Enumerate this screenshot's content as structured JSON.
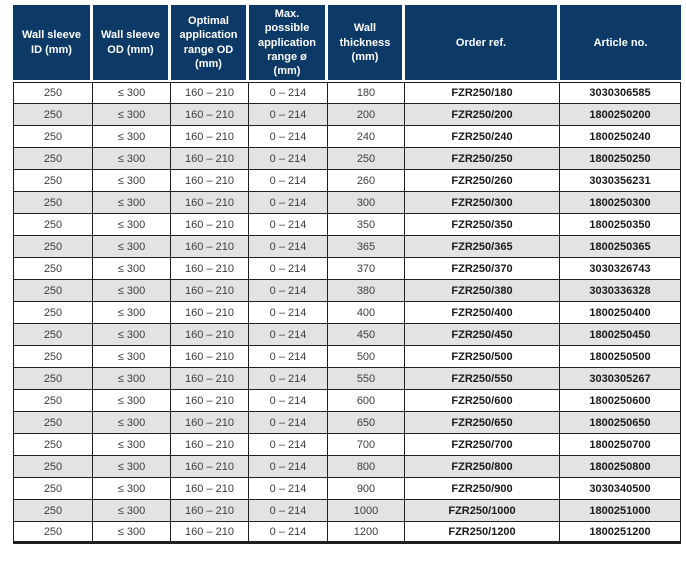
{
  "colors": {
    "header-bg": "#0d3966",
    "header-text": "#ffffff",
    "row-bg": "#ffffff",
    "row-alt-bg": "#e3e3e3",
    "grid-line": "#1f1f1f",
    "cell-text": "#3d3d3d",
    "strong-text": "#1a1a1a"
  },
  "table": {
    "columns": [
      "Wall sleeve ID (mm)",
      "Wall sleeve OD (mm)",
      "Optimal application range OD (mm)",
      "Max. possible application range ø (mm)",
      "Wall thickness (mm)",
      "Order ref.",
      "Article no."
    ],
    "rows": [
      [
        "250",
        "≤ 300",
        "160 – 210",
        "0 – 214",
        "180",
        "FZR250/180",
        "3030306585"
      ],
      [
        "250",
        "≤ 300",
        "160 – 210",
        "0 – 214",
        "200",
        "FZR250/200",
        "1800250200"
      ],
      [
        "250",
        "≤ 300",
        "160 – 210",
        "0 – 214",
        "240",
        "FZR250/240",
        "1800250240"
      ],
      [
        "250",
        "≤ 300",
        "160 – 210",
        "0 – 214",
        "250",
        "FZR250/250",
        "1800250250"
      ],
      [
        "250",
        "≤ 300",
        "160 – 210",
        "0 – 214",
        "260",
        "FZR250/260",
        "3030356231"
      ],
      [
        "250",
        "≤ 300",
        "160 – 210",
        "0 – 214",
        "300",
        "FZR250/300",
        "1800250300"
      ],
      [
        "250",
        "≤ 300",
        "160 – 210",
        "0 – 214",
        "350",
        "FZR250/350",
        "1800250350"
      ],
      [
        "250",
        "≤ 300",
        "160 – 210",
        "0 – 214",
        "365",
        "FZR250/365",
        "1800250365"
      ],
      [
        "250",
        "≤ 300",
        "160 – 210",
        "0 – 214",
        "370",
        "FZR250/370",
        "3030326743"
      ],
      [
        "250",
        "≤ 300",
        "160 – 210",
        "0 – 214",
        "380",
        "FZR250/380",
        "3030336328"
      ],
      [
        "250",
        "≤ 300",
        "160 – 210",
        "0 – 214",
        "400",
        "FZR250/400",
        "1800250400"
      ],
      [
        "250",
        "≤ 300",
        "160 – 210",
        "0 – 214",
        "450",
        "FZR250/450",
        "1800250450"
      ],
      [
        "250",
        "≤ 300",
        "160 – 210",
        "0 – 214",
        "500",
        "FZR250/500",
        "1800250500"
      ],
      [
        "250",
        "≤ 300",
        "160 – 210",
        "0 – 214",
        "550",
        "FZR250/550",
        "3030305267"
      ],
      [
        "250",
        "≤ 300",
        "160 – 210",
        "0 – 214",
        "600",
        "FZR250/600",
        "1800250600"
      ],
      [
        "250",
        "≤ 300",
        "160 – 210",
        "0 – 214",
        "650",
        "FZR250/650",
        "1800250650"
      ],
      [
        "250",
        "≤ 300",
        "160 – 210",
        "0 – 214",
        "700",
        "FZR250/700",
        "1800250700"
      ],
      [
        "250",
        "≤ 300",
        "160 – 210",
        "0 – 214",
        "800",
        "FZR250/800",
        "1800250800"
      ],
      [
        "250",
        "≤ 300",
        "160 – 210",
        "0 – 214",
        "900",
        "FZR250/900",
        "3030340500"
      ],
      [
        "250",
        "≤ 300",
        "160 – 210",
        "0 – 214",
        "1000",
        "FZR250/1000",
        "1800251000"
      ],
      [
        "250",
        "≤ 300",
        "160 – 210",
        "0 – 214",
        "1200",
        "FZR250/1200",
        "1800251200"
      ]
    ]
  }
}
